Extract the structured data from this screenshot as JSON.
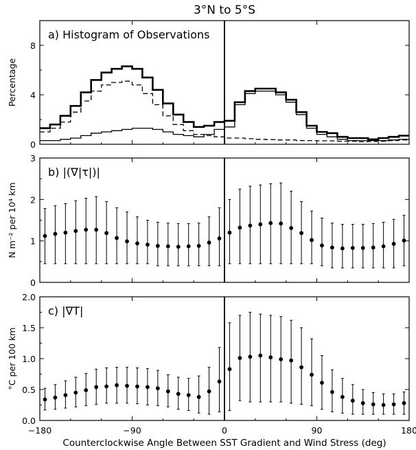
{
  "figure_title": "3°N to 5°S",
  "x_axis": {
    "label": "Counterclockwise Angle Between SST Gradient and Wind Stress (deg)",
    "range": [
      -180,
      180
    ],
    "ticks": [
      -180,
      -90,
      0,
      90,
      180
    ],
    "tick_labels": [
      "−180",
      "−90",
      "0",
      "90",
      "180"
    ]
  },
  "chart_data": [
    {
      "type": "line",
      "title": "a) Histogram of Observations",
      "ylabel": "Percentage",
      "ylim": [
        0,
        10
      ],
      "yticks": [
        0,
        4,
        8
      ],
      "ytick_labels": [
        "0",
        "4",
        "8"
      ],
      "bin_width": 10,
      "x": [
        -180,
        -170,
        -160,
        -150,
        -140,
        -130,
        -120,
        -110,
        -100,
        -90,
        -80,
        -70,
        -60,
        -50,
        -40,
        -30,
        -20,
        -10,
        0,
        10,
        20,
        30,
        40,
        50,
        60,
        70,
        80,
        90,
        100,
        110,
        120,
        130,
        140,
        150,
        160,
        170
      ],
      "series": [
        {
          "style": "thick-solid",
          "values": [
            1.3,
            1.6,
            2.3,
            3.1,
            4.2,
            5.2,
            5.8,
            6.1,
            6.3,
            6.1,
            5.4,
            4.4,
            3.3,
            2.4,
            1.8,
            1.4,
            1.5,
            1.8,
            1.9,
            3.4,
            4.3,
            4.5,
            4.5,
            4.2,
            3.6,
            2.6,
            1.5,
            1.0,
            0.9,
            0.6,
            0.5,
            0.5,
            0.4,
            0.5,
            0.6,
            0.7
          ]
        },
        {
          "style": "dashed",
          "values": [
            1.0,
            1.3,
            1.8,
            2.6,
            3.5,
            4.3,
            4.8,
            5.0,
            5.1,
            4.8,
            4.1,
            3.2,
            2.3,
            1.6,
            1.1,
            0.8,
            0.7,
            0.6,
            0.5,
            0.5,
            0.45,
            0.4,
            0.38,
            0.35,
            0.35,
            0.3,
            0.3,
            0.28,
            0.28,
            0.25,
            0.25,
            0.2,
            0.22,
            0.25,
            0.3,
            0.35
          ]
        },
        {
          "style": "thin-solid",
          "values": [
            0.3,
            0.3,
            0.4,
            0.5,
            0.7,
            0.9,
            1.0,
            1.1,
            1.2,
            1.3,
            1.3,
            1.2,
            1.0,
            0.8,
            0.7,
            0.6,
            0.8,
            1.2,
            1.4,
            3.2,
            4.1,
            4.3,
            4.3,
            4.0,
            3.4,
            2.4,
            1.3,
            0.8,
            0.6,
            0.4,
            0.3,
            0.3,
            0.3,
            0.3,
            0.35,
            0.4
          ]
        }
      ]
    },
    {
      "type": "scatter",
      "title": "b) |(∇|τ|)|",
      "ylabel": "N m⁻² per 10⁴ km",
      "ylim": [
        0,
        3
      ],
      "yticks": [
        0,
        1,
        2,
        3
      ],
      "ytick_labels": [
        "0",
        "1",
        "2",
        "3"
      ],
      "x": [
        -175,
        -165,
        -155,
        -145,
        -135,
        -125,
        -115,
        -105,
        -95,
        -85,
        -75,
        -65,
        -55,
        -45,
        -35,
        -25,
        -15,
        -5,
        5,
        15,
        25,
        35,
        45,
        55,
        65,
        75,
        85,
        95,
        105,
        115,
        125,
        135,
        145,
        155,
        165,
        175
      ],
      "values": [
        1.12,
        1.17,
        1.2,
        1.24,
        1.27,
        1.27,
        1.19,
        1.07,
        0.99,
        0.94,
        0.91,
        0.88,
        0.87,
        0.86,
        0.87,
        0.88,
        0.96,
        1.06,
        1.2,
        1.32,
        1.37,
        1.4,
        1.43,
        1.42,
        1.31,
        1.19,
        1.02,
        0.89,
        0.84,
        0.82,
        0.83,
        0.83,
        0.84,
        0.87,
        0.93,
        1.01
      ],
      "err_low": [
        0.45,
        0.45,
        0.45,
        0.45,
        0.45,
        0.45,
        0.45,
        0.45,
        0.45,
        0.45,
        0.45,
        0.4,
        0.4,
        0.4,
        0.4,
        0.4,
        0.4,
        0.4,
        0.45,
        0.45,
        0.45,
        0.45,
        0.45,
        0.45,
        0.45,
        0.45,
        0.45,
        0.4,
        0.35,
        0.35,
        0.35,
        0.35,
        0.35,
        0.35,
        0.35,
        0.4
      ],
      "err_high": [
        1.78,
        1.85,
        1.9,
        1.97,
        2.03,
        2.07,
        1.95,
        1.8,
        1.7,
        1.58,
        1.5,
        1.45,
        1.43,
        1.42,
        1.42,
        1.43,
        1.58,
        1.8,
        2.0,
        2.25,
        2.32,
        2.35,
        2.38,
        2.4,
        2.2,
        1.95,
        1.72,
        1.55,
        1.43,
        1.4,
        1.4,
        1.4,
        1.42,
        1.45,
        1.52,
        1.62
      ]
    },
    {
      "type": "scatter",
      "title": "c) |∇T|",
      "ylabel": "°C per 100 km",
      "ylim": [
        0,
        2
      ],
      "yticks": [
        0,
        0.5,
        1.0,
        1.5,
        2.0
      ],
      "ytick_labels": [
        "0.0",
        "0.5",
        "1.0",
        "1.5",
        "2.0"
      ],
      "x": [
        -175,
        -165,
        -155,
        -145,
        -135,
        -125,
        -115,
        -105,
        -95,
        -85,
        -75,
        -65,
        -55,
        -45,
        -35,
        -25,
        -15,
        -5,
        5,
        15,
        25,
        35,
        45,
        55,
        65,
        75,
        85,
        95,
        105,
        115,
        125,
        135,
        145,
        155,
        165,
        175
      ],
      "values": [
        0.34,
        0.37,
        0.41,
        0.45,
        0.49,
        0.54,
        0.55,
        0.57,
        0.56,
        0.55,
        0.54,
        0.52,
        0.47,
        0.43,
        0.41,
        0.38,
        0.47,
        0.63,
        0.83,
        1.01,
        1.03,
        1.05,
        1.02,
        0.99,
        0.97,
        0.86,
        0.74,
        0.61,
        0.46,
        0.38,
        0.32,
        0.28,
        0.26,
        0.25,
        0.26,
        0.28
      ],
      "err_low": [
        0.17,
        0.18,
        0.2,
        0.22,
        0.24,
        0.26,
        0.28,
        0.28,
        0.28,
        0.27,
        0.25,
        0.24,
        0.22,
        0.18,
        0.16,
        0.12,
        0.1,
        0.14,
        0.16,
        0.32,
        0.3,
        0.3,
        0.3,
        0.3,
        0.28,
        0.26,
        0.24,
        0.18,
        0.14,
        0.12,
        0.1,
        0.1,
        0.1,
        0.1,
        0.1,
        0.1
      ],
      "err_high": [
        0.52,
        0.58,
        0.64,
        0.7,
        0.76,
        0.83,
        0.85,
        0.86,
        0.86,
        0.85,
        0.84,
        0.81,
        0.74,
        0.7,
        0.68,
        0.72,
        0.86,
        1.18,
        1.58,
        1.7,
        1.75,
        1.72,
        1.7,
        1.68,
        1.62,
        1.5,
        1.32,
        1.05,
        0.82,
        0.68,
        0.58,
        0.5,
        0.45,
        0.43,
        0.43,
        0.46
      ]
    }
  ],
  "colors": {
    "ink": "#000000",
    "background": "#ffffff"
  }
}
